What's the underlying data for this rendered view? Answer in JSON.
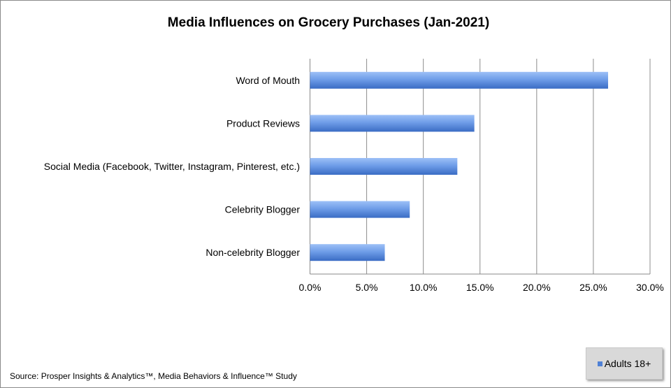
{
  "chart_data": {
    "type": "bar",
    "orientation": "horizontal",
    "title": "Media Influences on Grocery Purchases (Jan-2021)",
    "categories": [
      "Word of Mouth",
      "Product Reviews",
      "Social Media (Facebook, Twitter, Instagram, Pinterest, etc.)",
      "Celebrity Blogger",
      "Non-celebrity Blogger"
    ],
    "series": [
      {
        "name": "Adults 18+",
        "values": [
          26.3,
          14.5,
          13.0,
          8.8,
          6.6
        ],
        "color": "#4f81d6"
      }
    ],
    "xlim": [
      0,
      30
    ],
    "xticks": [
      "0.0%",
      "5.0%",
      "10.0%",
      "15.0%",
      "20.0%",
      "25.0%",
      "30.0%"
    ],
    "grid": true,
    "legend_position": "bottom-right",
    "source": "Source: Prosper Insights & Analytics™, Media Behaviors & Influence™ Study"
  }
}
